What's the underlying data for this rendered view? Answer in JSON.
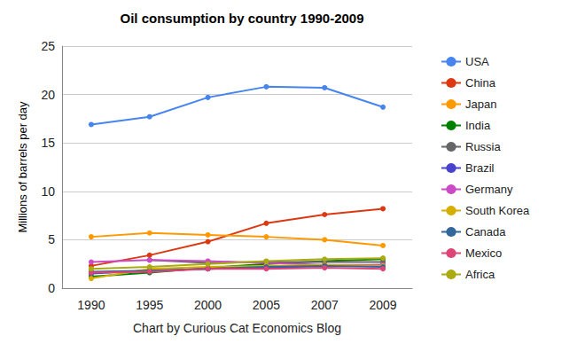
{
  "chart_data": {
    "type": "line",
    "title": "Oil consumption by country 1990-2009",
    "xlabel": "Chart by Curious Cat Economics Blog",
    "ylabel": "Millions of barrels per day",
    "categories": [
      "1990",
      "1995",
      "2000",
      "2005",
      "2007",
      "2009"
    ],
    "ylim": [
      0,
      25
    ],
    "yticks": [
      0,
      5,
      10,
      15,
      20,
      25
    ],
    "grid": true,
    "legend": "right",
    "marker": "circle",
    "series": [
      {
        "name": "USA",
        "color": "#4684ee",
        "values": [
          16.9,
          17.7,
          19.7,
          20.8,
          20.7,
          18.7
        ]
      },
      {
        "name": "China",
        "color": "#dc3912",
        "values": [
          2.3,
          3.4,
          4.8,
          6.7,
          7.6,
          8.2
        ]
      },
      {
        "name": "Japan",
        "color": "#ff9900",
        "values": [
          5.3,
          5.7,
          5.5,
          5.3,
          5.0,
          4.4
        ]
      },
      {
        "name": "India",
        "color": "#008000",
        "values": [
          1.2,
          1.6,
          2.1,
          2.5,
          2.8,
          3.0
        ]
      },
      {
        "name": "Russia",
        "color": "#666666",
        "values": [
          null,
          2.9,
          2.6,
          2.7,
          2.7,
          2.7
        ]
      },
      {
        "name": "Brazil",
        "color": "#4942cc",
        "values": [
          1.5,
          1.8,
          2.0,
          2.1,
          2.3,
          2.4
        ]
      },
      {
        "name": "Germany",
        "color": "#cb4ac5",
        "values": [
          2.7,
          2.9,
          2.8,
          2.6,
          2.4,
          2.4
        ]
      },
      {
        "name": "South Korea",
        "color": "#d6ae00",
        "values": [
          1.0,
          2.0,
          2.2,
          2.3,
          2.4,
          2.3
        ]
      },
      {
        "name": "Canada",
        "color": "#336699",
        "values": [
          1.7,
          1.8,
          2.0,
          2.2,
          2.3,
          2.2
        ]
      },
      {
        "name": "Mexico",
        "color": "#dd4477",
        "values": [
          1.6,
          1.7,
          2.0,
          2.0,
          2.1,
          2.0
        ]
      },
      {
        "name": "Africa",
        "color": "#aaaa11",
        "values": [
          2.0,
          2.2,
          2.5,
          2.8,
          3.0,
          3.1
        ]
      }
    ]
  }
}
